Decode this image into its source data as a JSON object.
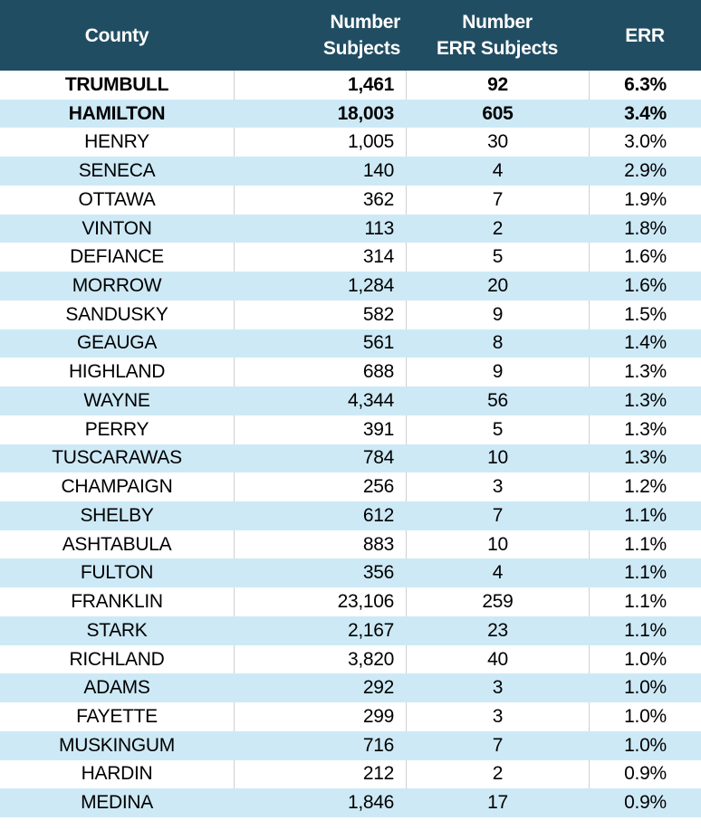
{
  "colors": {
    "header_bg": "#214D62",
    "header_text": "#FFFFFF",
    "row_bg": "#FFFFFF",
    "row_alt_bg": "#CDE9F6",
    "gridline": "#D0D0D0",
    "text": "#000000"
  },
  "chart_data": {
    "type": "table",
    "columns": [
      {
        "id": "county",
        "label": "County",
        "lines": [
          "County"
        ],
        "align": "center"
      },
      {
        "id": "number_subjects",
        "label": "Number Subjects",
        "lines": [
          "Number",
          "Subjects"
        ],
        "align": "right"
      },
      {
        "id": "number_err_subjects",
        "label": "Number ERR Subjects",
        "lines": [
          "Number",
          "ERR Subjects"
        ],
        "align": "center"
      },
      {
        "id": "err",
        "label": "ERR",
        "lines": [
          "ERR"
        ],
        "align": "center"
      }
    ],
    "rows": [
      {
        "county": "TRUMBULL",
        "number_subjects": "1,461",
        "number_err_subjects": "92",
        "err": "6.3%",
        "bold": true
      },
      {
        "county": "HAMILTON",
        "number_subjects": "18,003",
        "number_err_subjects": "605",
        "err": "3.4%",
        "bold": true
      },
      {
        "county": "HENRY",
        "number_subjects": "1,005",
        "number_err_subjects": "30",
        "err": "3.0%",
        "bold": false
      },
      {
        "county": "SENECA",
        "number_subjects": "140",
        "number_err_subjects": "4",
        "err": "2.9%",
        "bold": false
      },
      {
        "county": "OTTAWA",
        "number_subjects": "362",
        "number_err_subjects": "7",
        "err": "1.9%",
        "bold": false
      },
      {
        "county": "VINTON",
        "number_subjects": "113",
        "number_err_subjects": "2",
        "err": "1.8%",
        "bold": false
      },
      {
        "county": "DEFIANCE",
        "number_subjects": "314",
        "number_err_subjects": "5",
        "err": "1.6%",
        "bold": false
      },
      {
        "county": "MORROW",
        "number_subjects": "1,284",
        "number_err_subjects": "20",
        "err": "1.6%",
        "bold": false
      },
      {
        "county": "SANDUSKY",
        "number_subjects": "582",
        "number_err_subjects": "9",
        "err": "1.5%",
        "bold": false
      },
      {
        "county": "GEAUGA",
        "number_subjects": "561",
        "number_err_subjects": "8",
        "err": "1.4%",
        "bold": false
      },
      {
        "county": "HIGHLAND",
        "number_subjects": "688",
        "number_err_subjects": "9",
        "err": "1.3%",
        "bold": false
      },
      {
        "county": "WAYNE",
        "number_subjects": "4,344",
        "number_err_subjects": "56",
        "err": "1.3%",
        "bold": false
      },
      {
        "county": "PERRY",
        "number_subjects": "391",
        "number_err_subjects": "5",
        "err": "1.3%",
        "bold": false
      },
      {
        "county": "TUSCARAWAS",
        "number_subjects": "784",
        "number_err_subjects": "10",
        "err": "1.3%",
        "bold": false
      },
      {
        "county": "CHAMPAIGN",
        "number_subjects": "256",
        "number_err_subjects": "3",
        "err": "1.2%",
        "bold": false
      },
      {
        "county": "SHELBY",
        "number_subjects": "612",
        "number_err_subjects": "7",
        "err": "1.1%",
        "bold": false
      },
      {
        "county": "ASHTABULA",
        "number_subjects": "883",
        "number_err_subjects": "10",
        "err": "1.1%",
        "bold": false
      },
      {
        "county": "FULTON",
        "number_subjects": "356",
        "number_err_subjects": "4",
        "err": "1.1%",
        "bold": false
      },
      {
        "county": "FRANKLIN",
        "number_subjects": "23,106",
        "number_err_subjects": "259",
        "err": "1.1%",
        "bold": false
      },
      {
        "county": "STARK",
        "number_subjects": "2,167",
        "number_err_subjects": "23",
        "err": "1.1%",
        "bold": false
      },
      {
        "county": "RICHLAND",
        "number_subjects": "3,820",
        "number_err_subjects": "40",
        "err": "1.0%",
        "bold": false
      },
      {
        "county": "ADAMS",
        "number_subjects": "292",
        "number_err_subjects": "3",
        "err": "1.0%",
        "bold": false
      },
      {
        "county": "FAYETTE",
        "number_subjects": "299",
        "number_err_subjects": "3",
        "err": "1.0%",
        "bold": false
      },
      {
        "county": "MUSKINGUM",
        "number_subjects": "716",
        "number_err_subjects": "7",
        "err": "1.0%",
        "bold": false
      },
      {
        "county": "HARDIN",
        "number_subjects": "212",
        "number_err_subjects": "2",
        "err": "0.9%",
        "bold": false
      },
      {
        "county": "MEDINA",
        "number_subjects": "1,846",
        "number_err_subjects": "17",
        "err": "0.9%",
        "bold": false
      }
    ]
  }
}
